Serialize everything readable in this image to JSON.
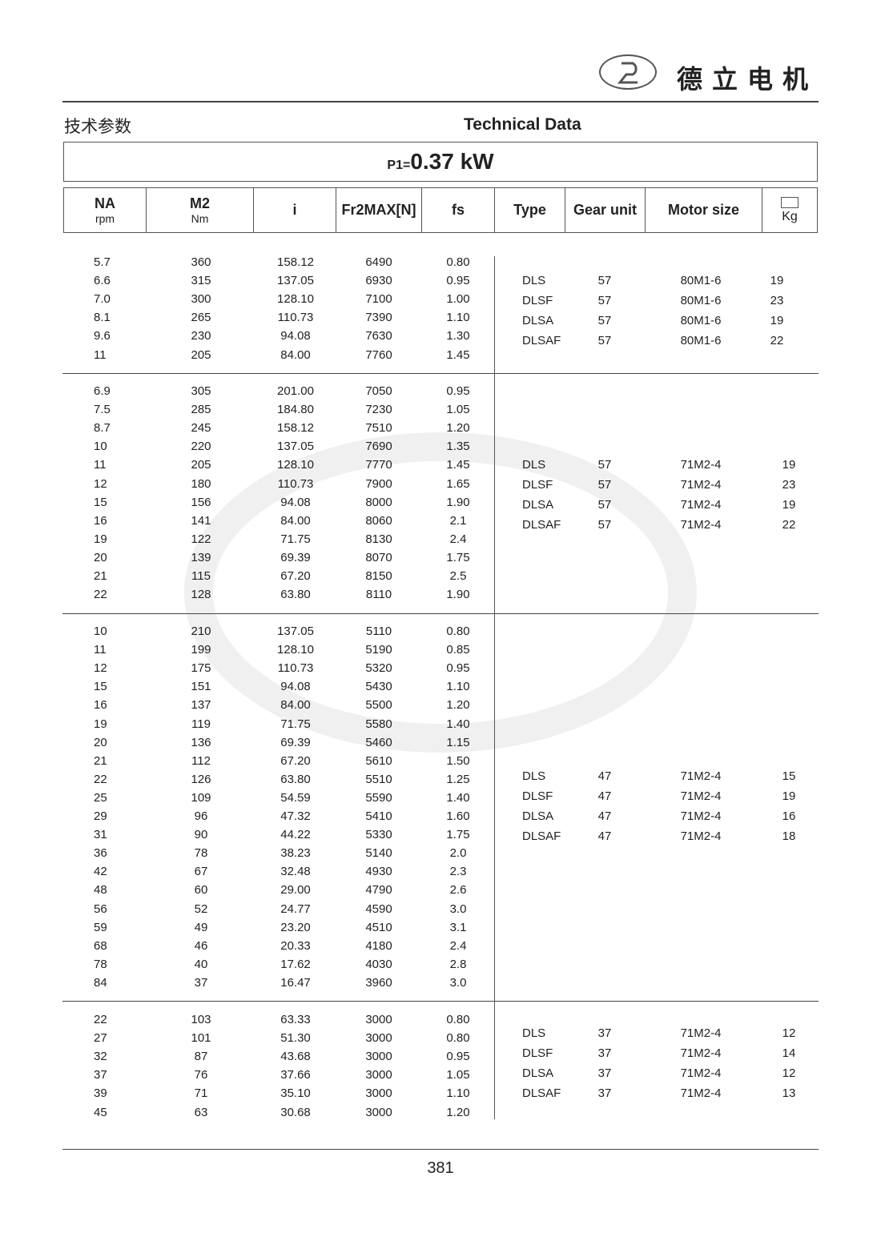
{
  "brand": {
    "logo_text": "德立 De Li Gear Motor",
    "name": "德立电机"
  },
  "header": {
    "title_cn": "技术参数",
    "title_en": "Technical Data"
  },
  "power": {
    "prefix": "P1=",
    "value": "0.37 kW"
  },
  "columns": {
    "na": "NA",
    "na_unit": "rpm",
    "m2": "M2",
    "m2_unit": "Nm",
    "i": "i",
    "fr": "Fr2MAX[N]",
    "fs": "fs",
    "type": "Type",
    "gear": "Gear unit",
    "motor": "Motor size",
    "kg": "Kg"
  },
  "groups": [
    {
      "rows": [
        [
          "5.7",
          "360",
          "158.12",
          "6490",
          "0.80"
        ],
        [
          "6.6",
          "315",
          "137.05",
          "6930",
          "0.95"
        ],
        [
          "7.0",
          "300",
          "128.10",
          "7100",
          "1.00"
        ],
        [
          "8.1",
          "265",
          "110.73",
          "7390",
          "1.10"
        ],
        [
          "9.6",
          "230",
          "94.08",
          "7630",
          "1.30"
        ],
        [
          "11",
          "205",
          "84.00",
          "7760",
          "1.45"
        ]
      ],
      "motors": [
        [
          "DLS",
          "57",
          "80M1-6",
          "19"
        ],
        [
          "DLSF",
          "57",
          "80M1-6",
          "23"
        ],
        [
          "DLSA",
          "57",
          "80M1-6",
          "19"
        ],
        [
          "DLSAF",
          "57",
          "80M1-6",
          "22"
        ]
      ]
    },
    {
      "rows": [
        [
          "6.9",
          "305",
          "201.00",
          "7050",
          "0.95"
        ],
        [
          "7.5",
          "285",
          "184.80",
          "7230",
          "1.05"
        ],
        [
          "8.7",
          "245",
          "158.12",
          "7510",
          "1.20"
        ],
        [
          "10",
          "220",
          "137.05",
          "7690",
          "1.35"
        ],
        [
          "11",
          "205",
          "128.10",
          "7770",
          "1.45"
        ],
        [
          "12",
          "180",
          "110.73",
          "7900",
          "1.65"
        ],
        [
          "15",
          "156",
          "94.08",
          "8000",
          "1.90"
        ],
        [
          "16",
          "141",
          "84.00",
          "8060",
          "2.1"
        ],
        [
          "19",
          "122",
          "71.75",
          "8130",
          "2.4"
        ],
        [
          "20",
          "139",
          "69.39",
          "8070",
          "1.75"
        ],
        [
          "21",
          "115",
          "67.20",
          "8150",
          "2.5"
        ],
        [
          "22",
          "128",
          "63.80",
          "8110",
          "1.90"
        ]
      ],
      "motors": [
        [
          "DLS",
          "57",
          "71M2-4",
          "19"
        ],
        [
          "DLSF",
          "57",
          "71M2-4",
          "23"
        ],
        [
          "DLSA",
          "57",
          "71M2-4",
          "19"
        ],
        [
          "DLSAF",
          "57",
          "71M2-4",
          "22"
        ]
      ]
    },
    {
      "rows": [
        [
          "10",
          "210",
          "137.05",
          "5110",
          "0.80"
        ],
        [
          "11",
          "199",
          "128.10",
          "5190",
          "0.85"
        ],
        [
          "12",
          "175",
          "110.73",
          "5320",
          "0.95"
        ],
        [
          "15",
          "151",
          "94.08",
          "5430",
          "1.10"
        ],
        [
          "16",
          "137",
          "84.00",
          "5500",
          "1.20"
        ],
        [
          "19",
          "119",
          "71.75",
          "5580",
          "1.40"
        ],
        [
          "20",
          "136",
          "69.39",
          "5460",
          "1.15"
        ],
        [
          "21",
          "112",
          "67.20",
          "5610",
          "1.50"
        ],
        [
          "22",
          "126",
          "63.80",
          "5510",
          "1.25"
        ],
        [
          "25",
          "109",
          "54.59",
          "5590",
          "1.40"
        ],
        [
          "29",
          "96",
          "47.32",
          "5410",
          "1.60"
        ],
        [
          "31",
          "90",
          "44.22",
          "5330",
          "1.75"
        ],
        [
          "36",
          "78",
          "38.23",
          "5140",
          "2.0"
        ],
        [
          "42",
          "67",
          "32.48",
          "4930",
          "2.3"
        ],
        [
          "48",
          "60",
          "29.00",
          "4790",
          "2.6"
        ],
        [
          "56",
          "52",
          "24.77",
          "4590",
          "3.0"
        ],
        [
          "59",
          "49",
          "23.20",
          "4510",
          "3.1"
        ],
        [
          "68",
          "46",
          "20.33",
          "4180",
          "2.4"
        ],
        [
          "78",
          "40",
          "17.62",
          "4030",
          "2.8"
        ],
        [
          "84",
          "37",
          "16.47",
          "3960",
          "3.0"
        ]
      ],
      "motors": [
        [
          "DLS",
          "47",
          "71M2-4",
          "15"
        ],
        [
          "DLSF",
          "47",
          "71M2-4",
          "19"
        ],
        [
          "DLSA",
          "47",
          "71M2-4",
          "16"
        ],
        [
          "DLSAF",
          "47",
          "71M2-4",
          "18"
        ]
      ]
    },
    {
      "rows": [
        [
          "22",
          "103",
          "63.33",
          "3000",
          "0.80"
        ],
        [
          "27",
          "101",
          "51.30",
          "3000",
          "0.80"
        ],
        [
          "32",
          "87",
          "43.68",
          "3000",
          "0.95"
        ],
        [
          "37",
          "76",
          "37.66",
          "3000",
          "1.05"
        ],
        [
          "39",
          "71",
          "35.10",
          "3000",
          "1.10"
        ],
        [
          "45",
          "63",
          "30.68",
          "3000",
          "1.20"
        ]
      ],
      "motors": [
        [
          "DLS",
          "37",
          "71M2-4",
          "12"
        ],
        [
          "DLSF",
          "37",
          "71M2-4",
          "14"
        ],
        [
          "DLSA",
          "37",
          "71M2-4",
          "12"
        ],
        [
          "DLSAF",
          "37",
          "71M2-4",
          "13"
        ]
      ]
    }
  ],
  "page_number": "381"
}
